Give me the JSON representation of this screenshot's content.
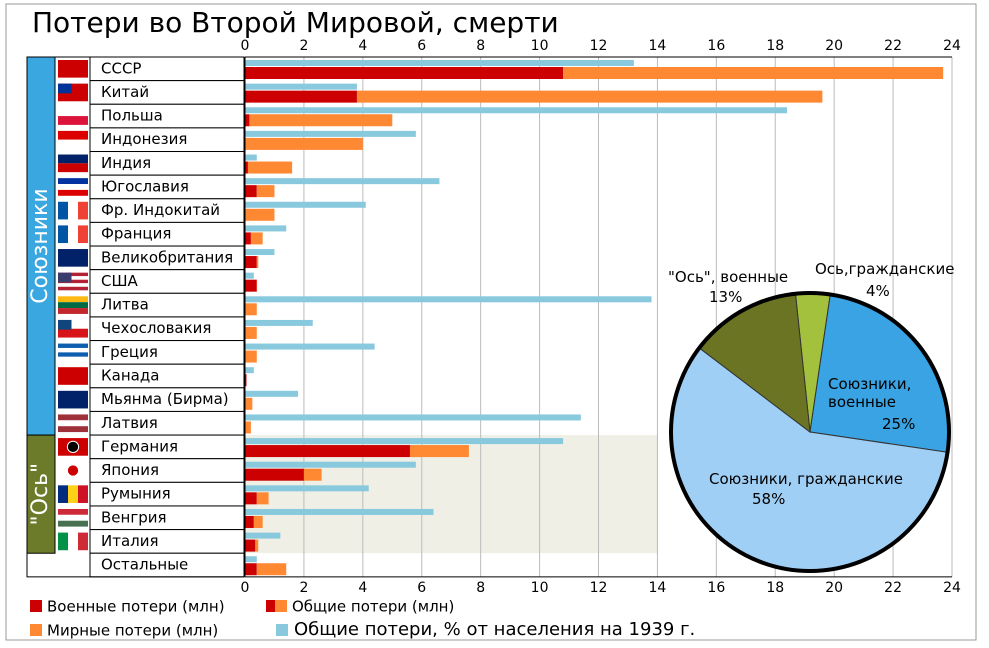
{
  "chart_data": [
    {
      "type": "hbar",
      "title": "Потери во Второй Мировой, смерти",
      "categories": [
        "СССР",
        "Китай",
        "Польша",
        "Индонезия",
        "Индия",
        "Югославия",
        "Фр. Индокитай",
        "Франция",
        "Великобритания",
        "США",
        "Литва",
        "Чехословакия",
        "Греция",
        "Канада",
        "Мьянма (Бирма)",
        "Латвия",
        "Германия",
        "Япония",
        "Румыния",
        "Венгрия",
        "Италия",
        "Остальные"
      ],
      "groups": [
        {
          "name": "Союзники",
          "count": 16,
          "color": "#3aa7e0"
        },
        {
          "name": "\"Ось\"",
          "count": 5,
          "color": "#6b7b2a"
        }
      ],
      "series": [
        {
          "name": "Военные потери (млн)",
          "color": "#cc0000",
          "values": [
            10.8,
            3.8,
            0.15,
            0,
            0.1,
            0.4,
            0,
            0.2,
            0.4,
            0.4,
            0,
            0,
            0,
            0.05,
            0,
            0,
            5.6,
            2.0,
            0.4,
            0.3,
            0.35,
            0.4
          ]
        },
        {
          "name": "Мирные потери (млн)",
          "color": "#ff8833",
          "values": [
            12.9,
            15.8,
            4.85,
            4.0,
            1.5,
            0.6,
            1.0,
            0.4,
            0.05,
            0.01,
            0.4,
            0.4,
            0.4,
            0,
            0.25,
            0.2,
            2.0,
            0.6,
            0.4,
            0.3,
            0.1,
            1.0
          ]
        },
        {
          "name": "Общие потери, % от населения на 1939 г.",
          "color": "#89c9de",
          "values": [
            13.2,
            3.8,
            18.4,
            5.8,
            0.4,
            6.6,
            4.1,
            1.4,
            1.0,
            0.3,
            13.8,
            2.3,
            4.4,
            0.3,
            1.8,
            11.4,
            10.8,
            5.8,
            4.2,
            6.4,
            1.2,
            0.4
          ]
        }
      ],
      "total_legend": "Общие потери (млн)",
      "xlim": [
        0,
        24
      ],
      "xticks": [
        0,
        2,
        4,
        6,
        8,
        10,
        12,
        14,
        16,
        18,
        20,
        22,
        24
      ],
      "grid": true
    },
    {
      "type": "pie",
      "categories": [
        "Ось,гражданские",
        "Союзники, военные",
        "Союзники, гражданские",
        "\"Ось\", военные"
      ],
      "values": [
        4,
        25,
        58,
        13
      ],
      "value_labels": [
        "4%",
        "25%",
        "58%",
        "13%"
      ],
      "colors": [
        "#a3c13d",
        "#3aa3e3",
        "#a0cff5",
        "#6b7423"
      ]
    }
  ]
}
